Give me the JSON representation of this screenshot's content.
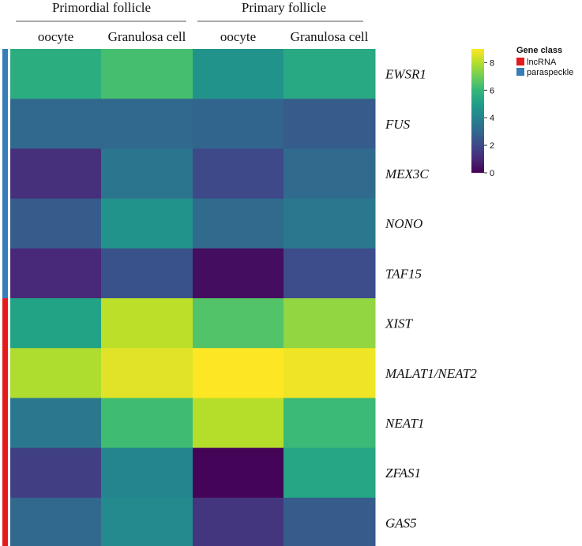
{
  "chart_data": {
    "type": "heatmap",
    "column_groups": [
      {
        "label": "Primordial follicle",
        "columns": [
          "oocyte",
          "Granulosa cell"
        ]
      },
      {
        "label": "Primary follicle",
        "columns": [
          "oocyte",
          "Granulosa cell"
        ]
      }
    ],
    "rows": [
      {
        "gene": "EWSR1",
        "class": "paraspeckle",
        "values": [
          5.6,
          6.3,
          4.6,
          5.4
        ]
      },
      {
        "gene": "FUS",
        "class": "paraspeckle",
        "values": [
          3.0,
          3.0,
          2.9,
          2.6
        ]
      },
      {
        "gene": "MEX3C",
        "class": "paraspeckle",
        "values": [
          1.2,
          3.5,
          2.0,
          3.1
        ]
      },
      {
        "gene": "NONO",
        "class": "paraspeckle",
        "values": [
          2.6,
          4.6,
          3.1,
          3.6
        ]
      },
      {
        "gene": "TAF15",
        "class": "paraspeckle",
        "values": [
          1.0,
          2.3,
          0.3,
          2.1
        ]
      },
      {
        "gene": "XIST",
        "class": "lncRNA",
        "values": [
          5.2,
          8.1,
          6.5,
          7.5
        ]
      },
      {
        "gene": "MALAT1/NEAT2",
        "class": "lncRNA",
        "values": [
          7.9,
          8.6,
          9.0,
          8.8
        ]
      },
      {
        "gene": "NEAT1",
        "class": "lncRNA",
        "values": [
          3.6,
          6.2,
          8.0,
          6.1
        ]
      },
      {
        "gene": "ZFAS1",
        "class": "lncRNA",
        "values": [
          1.7,
          4.1,
          0.1,
          5.3
        ]
      },
      {
        "gene": "GAS5",
        "class": "lncRNA",
        "values": [
          3.0,
          4.3,
          1.4,
          2.6
        ]
      }
    ],
    "colorbar": {
      "min": 0,
      "max": 9,
      "ticks": [
        0,
        2,
        4,
        6,
        8
      ],
      "tick_labels": [
        "0",
        "2",
        "4",
        "6",
        "8"
      ]
    },
    "legend": {
      "title": "Gene class",
      "position": "top-right",
      "entries": [
        {
          "label": "lncRNA",
          "color": "#e41a1c"
        },
        {
          "label": "paraspeckle",
          "color": "#377eb8"
        }
      ]
    },
    "palette": [
      "#440154",
      "#482878",
      "#3e4989",
      "#31688e",
      "#26828e",
      "#1f9e89",
      "#35b779",
      "#6ece58",
      "#b5de2b",
      "#fde725"
    ]
  }
}
